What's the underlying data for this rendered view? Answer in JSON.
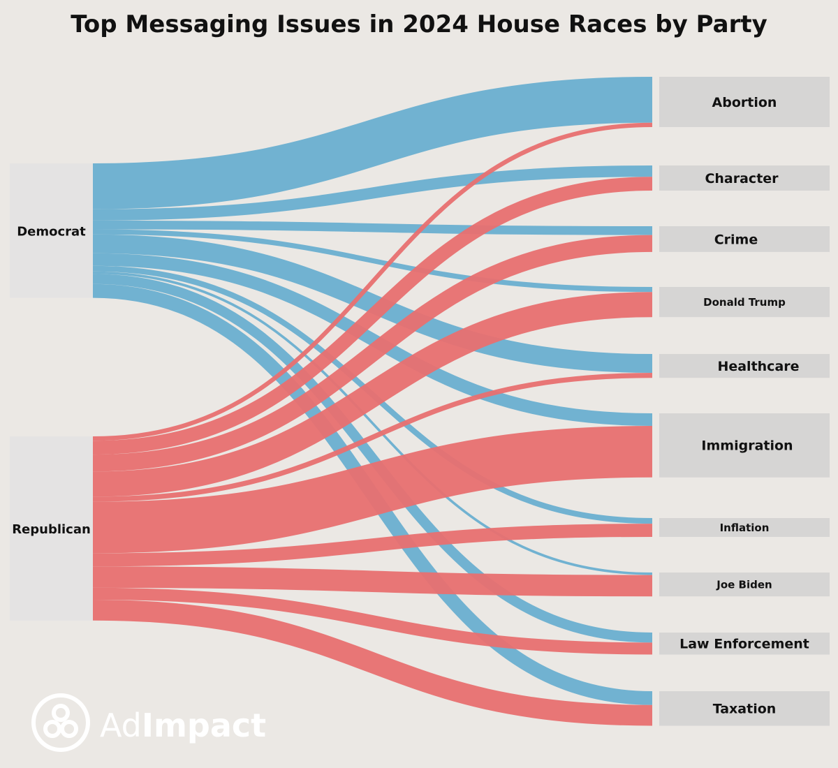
{
  "chart_data": {
    "type": "sankey",
    "title": "Top Messaging Issues in 2024 House Races by Party",
    "sources": [
      {
        "name": "Democrat",
        "color": "#6aafd0"
      },
      {
        "name": "Republican",
        "color": "#e87070"
      }
    ],
    "targets": [
      "Abortion",
      "Character",
      "Crime",
      "Donald Trump",
      "Healthcare",
      "Immigration",
      "Inflation",
      "Joe Biden",
      "Law Enforcement",
      "Taxation"
    ],
    "links": [
      {
        "source": "Democrat",
        "target": "Abortion",
        "value": 73
      },
      {
        "source": "Democrat",
        "target": "Character",
        "value": 18
      },
      {
        "source": "Democrat",
        "target": "Crime",
        "value": 14
      },
      {
        "source": "Democrat",
        "target": "Donald Trump",
        "value": 8
      },
      {
        "source": "Democrat",
        "target": "Healthcare",
        "value": 30
      },
      {
        "source": "Democrat",
        "target": "Immigration",
        "value": 20
      },
      {
        "source": "Democrat",
        "target": "Inflation",
        "value": 9
      },
      {
        "source": "Democrat",
        "target": "Joe Biden",
        "value": 4
      },
      {
        "source": "Democrat",
        "target": "Law Enforcement",
        "value": 16
      },
      {
        "source": "Democrat",
        "target": "Taxation",
        "value": 22
      },
      {
        "source": "Republican",
        "target": "Abortion",
        "value": 7
      },
      {
        "source": "Republican",
        "target": "Character",
        "value": 22
      },
      {
        "source": "Republican",
        "target": "Crime",
        "value": 27
      },
      {
        "source": "Republican",
        "target": "Donald Trump",
        "value": 40
      },
      {
        "source": "Republican",
        "target": "Healthcare",
        "value": 8
      },
      {
        "source": "Republican",
        "target": "Immigration",
        "value": 82
      },
      {
        "source": "Republican",
        "target": "Inflation",
        "value": 21
      },
      {
        "source": "Republican",
        "target": "Joe Biden",
        "value": 34
      },
      {
        "source": "Republican",
        "target": "Law Enforcement",
        "value": 19
      },
      {
        "source": "Republican",
        "target": "Taxation",
        "value": 33
      }
    ]
  },
  "logo": {
    "text_light": "Ad",
    "text_bold": "Impact"
  },
  "colors": {
    "background": "#ebe8e4",
    "node_box": "#d6d5d4",
    "source_box": "#e4e3e3",
    "logo": "#ffffff"
  }
}
